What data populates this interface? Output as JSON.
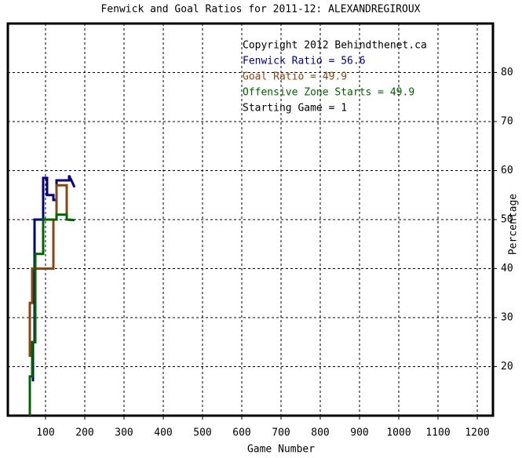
{
  "chart_data": {
    "type": "line",
    "title": "Fenwick and Goal Ratios for 2011-12: ALEXANDREGIROUX",
    "x_label": "Game Number",
    "y_label": "Percentage",
    "annotations": [
      {
        "text": "Copyright 2012 Behindthenet.ca",
        "color": "#000000"
      },
      {
        "text": "Fenwick Ratio = 56.6",
        "color": "#000080"
      },
      {
        "text": "Goal Ratio = 49.9",
        "color": "#8b4513"
      },
      {
        "text": "Offensive Zone Starts = 49.9",
        "color": "#006400"
      },
      {
        "text": "Starting Game = 1",
        "color": "#000000"
      }
    ],
    "series": [
      {
        "name": "Fenwick Ratio",
        "color": "#000080",
        "x": [
          68,
          68,
          72,
          72,
          94,
          94,
          104,
          104,
          120,
          120,
          128,
          128,
          160,
          160,
          174
        ],
        "values": [
          17,
          25,
          25,
          50,
          50,
          58.5,
          58.5,
          55,
          55,
          54,
          54,
          58,
          58,
          59,
          56.6
        ]
      },
      {
        "name": "Goal Ratio",
        "color": "#8b4513",
        "x": [
          60,
          60,
          66,
          66,
          74,
          74,
          120,
          120,
          128,
          128,
          154,
          154,
          174
        ],
        "values": [
          22,
          33,
          33,
          40,
          40,
          40,
          40,
          50,
          50,
          57,
          57,
          50,
          49.9
        ]
      },
      {
        "name": "Offensive Zone Starts",
        "color": "#006400",
        "x": [
          60,
          60,
          66,
          66,
          74,
          74,
          94,
          94,
          128,
          128,
          154,
          154,
          174
        ],
        "values": [
          10,
          18,
          18,
          25,
          25,
          43,
          43,
          50,
          50,
          51,
          51,
          50,
          49.9
        ]
      }
    ],
    "xlim": [
      4,
      1240
    ],
    "ylim": [
      10,
      90
    ],
    "xticks": [
      100,
      200,
      300,
      400,
      500,
      600,
      700,
      800,
      900,
      1000,
      1100,
      1200
    ],
    "yticks": [
      20,
      30,
      40,
      50,
      60,
      70,
      80
    ],
    "grid": true
  }
}
